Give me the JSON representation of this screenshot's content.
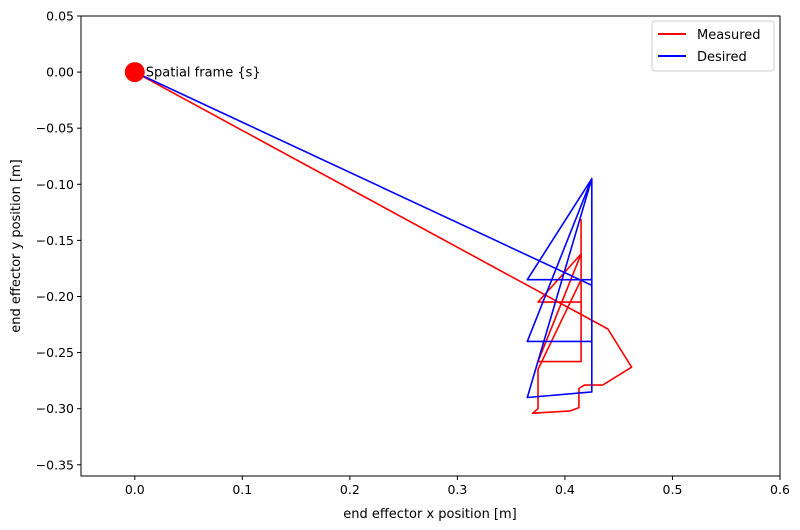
{
  "chart_data": {
    "type": "line",
    "title": "",
    "xlabel": "end effector x position [m]",
    "ylabel": "end effector y position [m]",
    "xlim": [
      -0.05,
      0.6
    ],
    "ylim": [
      -0.36,
      0.05
    ],
    "xticks": [
      0.0,
      0.1,
      0.2,
      0.3,
      0.4,
      0.5,
      0.6
    ],
    "xtick_labels": [
      "0.0",
      "0.1",
      "0.2",
      "0.3",
      "0.4",
      "0.5",
      "0.6"
    ],
    "yticks": [
      0.05,
      0.0,
      -0.05,
      -0.1,
      -0.15,
      -0.2,
      -0.25,
      -0.3,
      -0.35
    ],
    "ytick_labels": [
      "0.05",
      "0.00",
      "−0.05",
      "−0.10",
      "−0.15",
      "−0.20",
      "−0.25",
      "−0.30",
      "−0.35"
    ],
    "grid": false,
    "legend": {
      "position": "top-right",
      "entries": [
        {
          "label": "Measured",
          "color": "#ff0000"
        },
        {
          "label": "Desired",
          "color": "#0000ff"
        }
      ]
    },
    "annotation": {
      "text": "Spatial frame {s}",
      "x": 0.0,
      "y": 0.0,
      "marker_color": "#ff0000"
    },
    "series": [
      {
        "name": "Measured",
        "color": "#ff0000",
        "x": [
          0.415,
          0.415,
          0.375,
          0.415,
          0.415,
          0.375,
          0.375,
          0.415,
          0.415,
          0.375,
          0.375,
          0.37,
          0.405,
          0.413,
          0.413,
          0.418,
          0.435,
          0.462,
          0.44,
          0.0
        ],
        "y": [
          -0.131,
          -0.162,
          -0.258,
          -0.258,
          -0.162,
          -0.205,
          -0.205,
          -0.205,
          -0.185,
          -0.265,
          -0.3,
          -0.304,
          -0.302,
          -0.299,
          -0.282,
          -0.279,
          -0.279,
          -0.263,
          -0.229,
          0.0
        ]
      },
      {
        "name": "Desired",
        "color": "#0000ff",
        "x": [
          0.0,
          0.425,
          0.425,
          0.365,
          0.425,
          0.425,
          0.365,
          0.425,
          0.425,
          0.365,
          0.425,
          0.425
        ],
        "y": [
          0.0,
          -0.19,
          -0.095,
          -0.29,
          -0.285,
          -0.185,
          -0.185,
          -0.095,
          -0.24,
          -0.24,
          -0.095,
          -0.19
        ]
      }
    ]
  }
}
